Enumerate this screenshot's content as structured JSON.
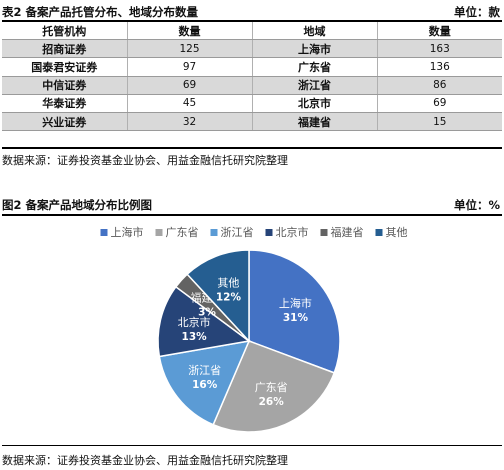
{
  "table": {
    "title": "表2 备案产品托管分布、地域分布数量",
    "unit": "单位：款",
    "headers": [
      "托管机构",
      "数量",
      "地域",
      "数量"
    ],
    "rows": [
      {
        "org": "招商证券",
        "org_count": "125",
        "region": "上海市",
        "region_count": "163"
      },
      {
        "org": "国泰君安证券",
        "org_count": "97",
        "region": "广东省",
        "region_count": "136"
      },
      {
        "org": "中信证券",
        "org_count": "69",
        "region": "浙江省",
        "region_count": "86"
      },
      {
        "org": "华泰证券",
        "org_count": "45",
        "region": "北京市",
        "region_count": "69"
      },
      {
        "org": "兴业证券",
        "org_count": "32",
        "region": "福建省",
        "region_count": "15"
      }
    ],
    "source": "数据来源：证券投资基金业协会、用益金融信托研究院整理"
  },
  "figure": {
    "title": "图2 备案产品地域分布比例图",
    "unit": "单位：%",
    "source": "数据来源：证券投资基金业协会、用益金融信托研究院整理"
  },
  "chart_data": {
    "type": "pie",
    "title": "",
    "legend_position": "top",
    "slices": [
      {
        "label": "上海市",
        "value": 31,
        "color": "#4472C4",
        "text": "31%"
      },
      {
        "label": "广东省",
        "value": 26,
        "color": "#A5A5A5",
        "text": "26%"
      },
      {
        "label": "浙江省",
        "value": 16,
        "color": "#5B9BD5",
        "text": "16%"
      },
      {
        "label": "北京市",
        "value": 13,
        "color": "#264478",
        "text": "13%"
      },
      {
        "label": "福建省",
        "value": 3,
        "color": "#636363",
        "text": "3%"
      },
      {
        "label": "其他",
        "value": 12,
        "color": "#255E91",
        "text": "12%"
      }
    ]
  }
}
